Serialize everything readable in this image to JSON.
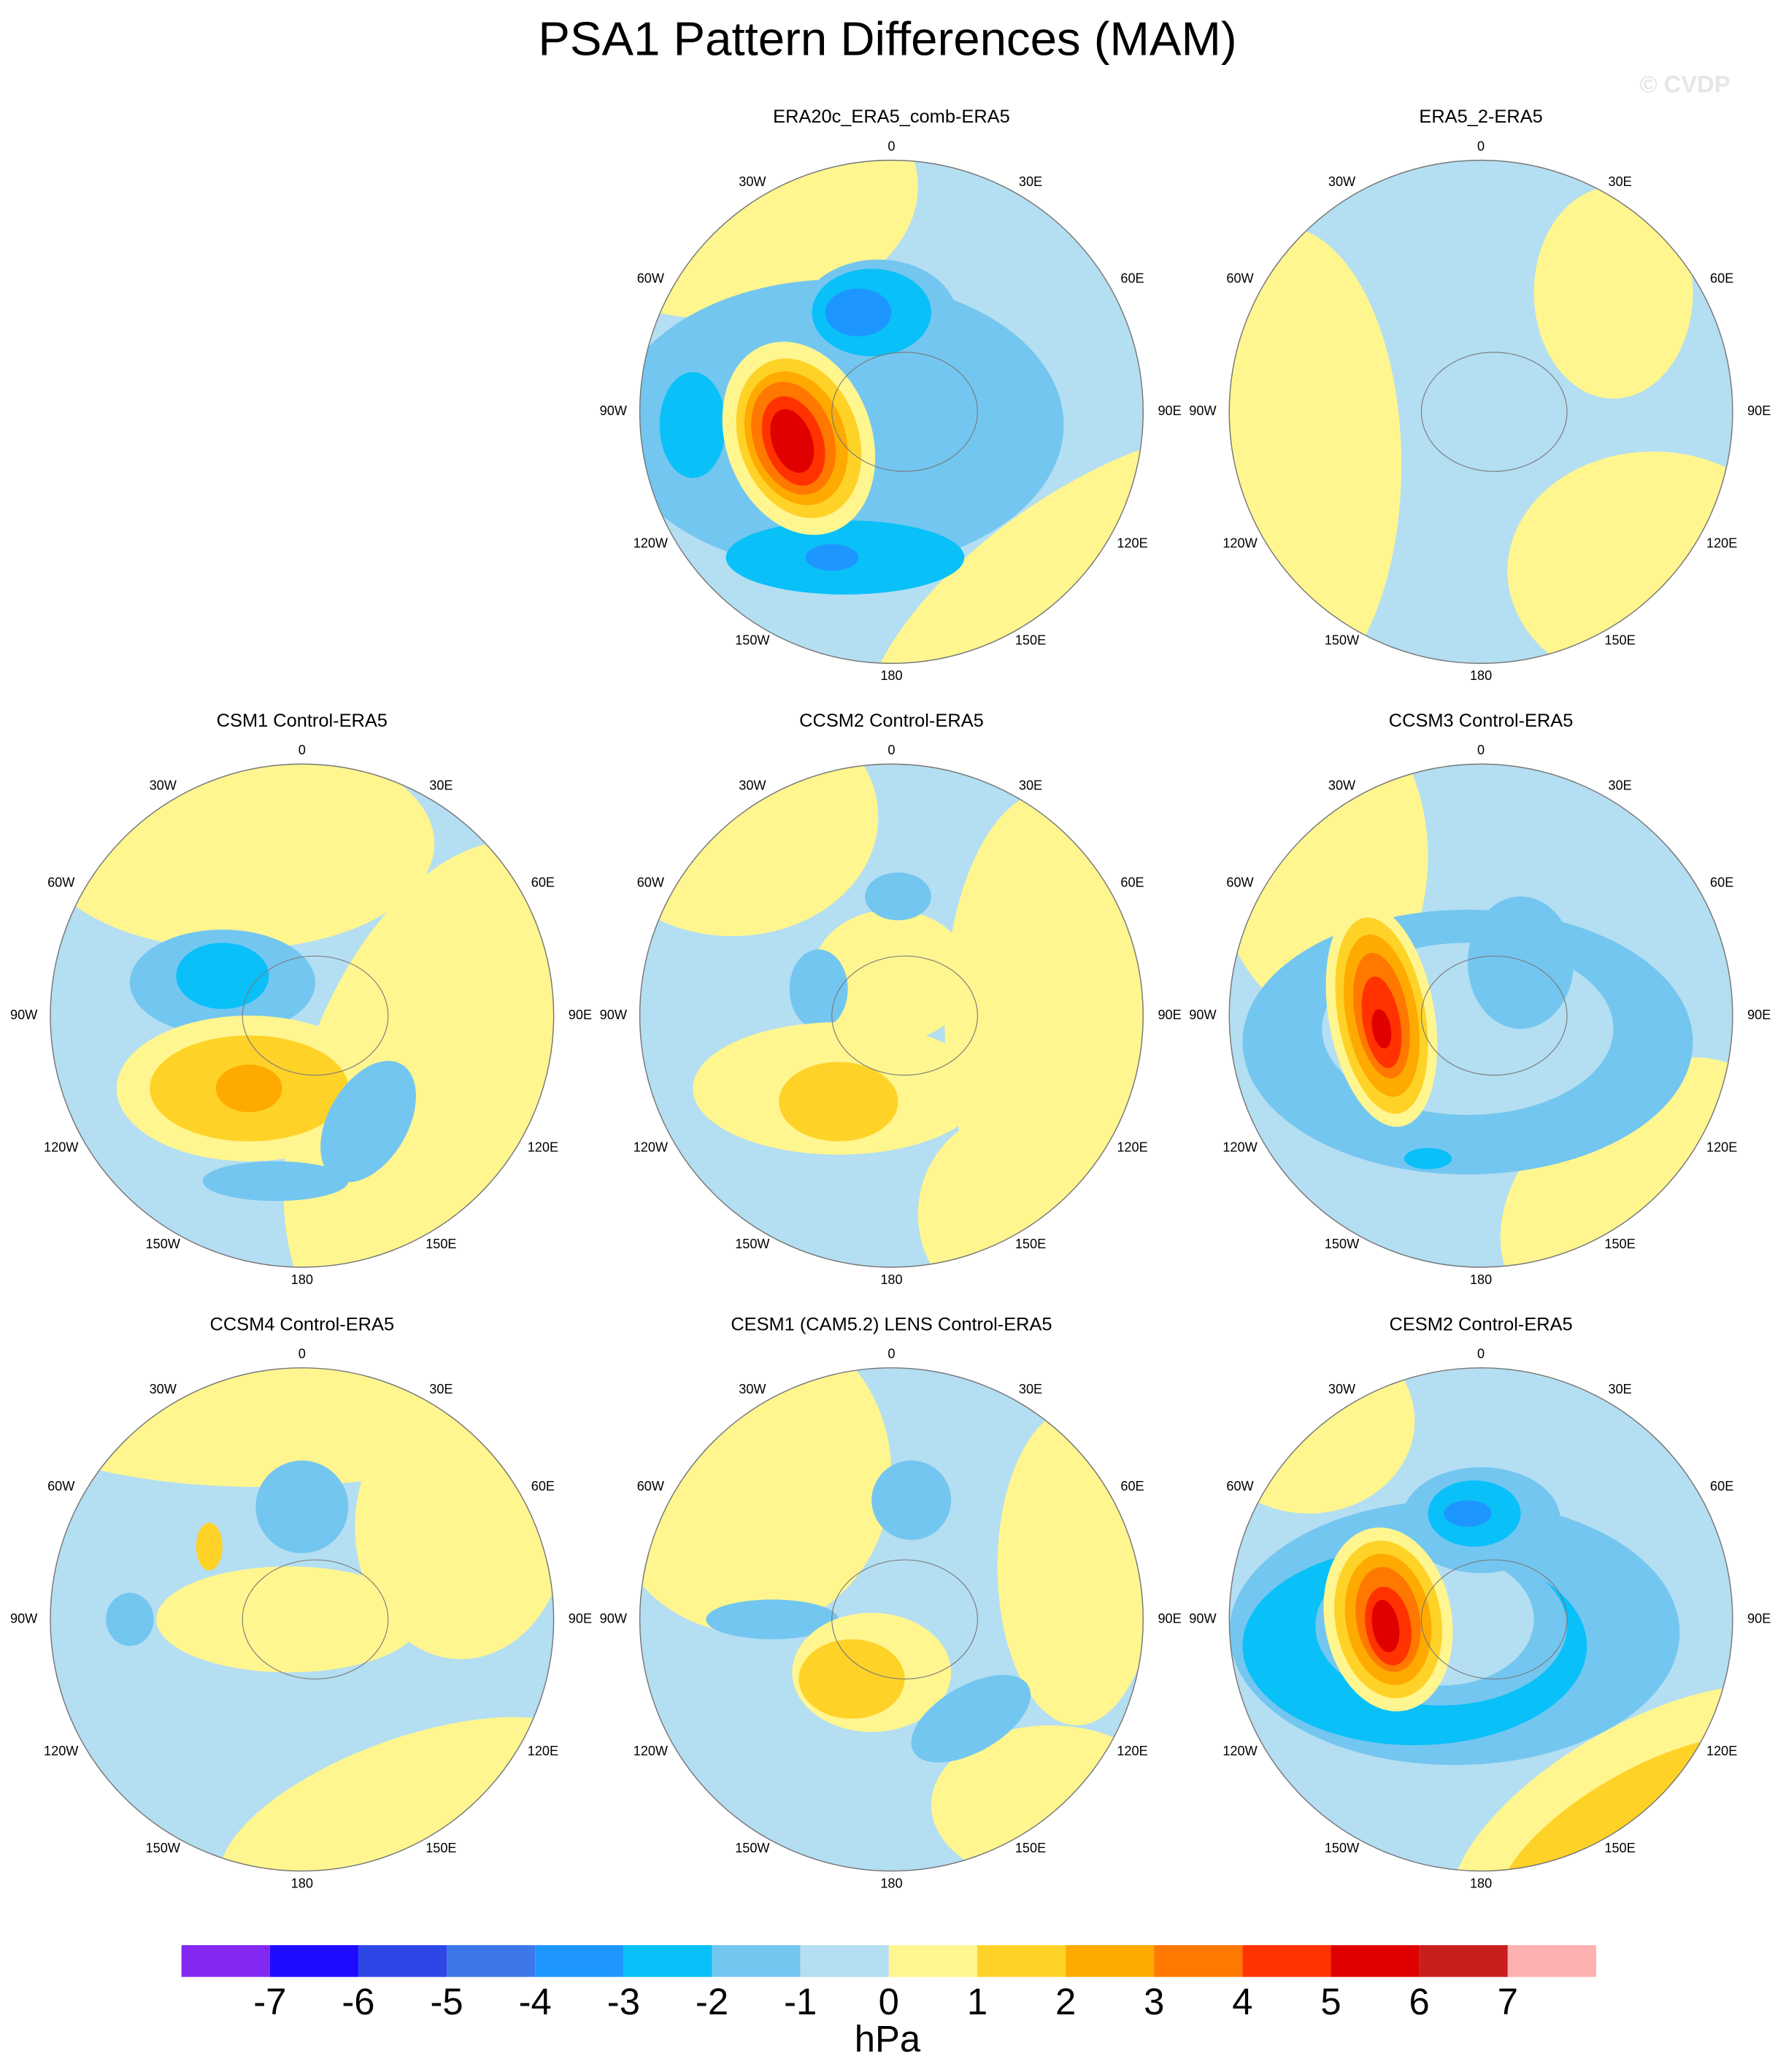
{
  "title": "PSA1 Pattern Differences (MAM)",
  "watermark": "© CVDP",
  "longitude_labels": [
    "0",
    "30E",
    "60E",
    "90E",
    "120E",
    "150E",
    "180",
    "150W",
    "120W",
    "90W",
    "60W",
    "30W"
  ],
  "panels": [
    {
      "title": "ERA20c_ERA5_comb-ERA5"
    },
    {
      "title": "ERA5_2-ERA5"
    },
    {
      "title": "CSM1 Control-ERA5"
    },
    {
      "title": "CCSM2 Control-ERA5"
    },
    {
      "title": "CCSM3 Control-ERA5"
    },
    {
      "title": "CCSM4 Control-ERA5"
    },
    {
      "title": "CESM1 (CAM5.2) LENS Control-ERA5"
    },
    {
      "title": "CESM2 Control-ERA5"
    }
  ],
  "colorbar": {
    "levels": [
      -7,
      -6,
      -5,
      -4,
      -3,
      -2,
      -1,
      0,
      1,
      2,
      3,
      4,
      5,
      6,
      7
    ],
    "colors": [
      "#8228f0",
      "#1e0aff",
      "#2d46e6",
      "#3c78e8",
      "#1e96ff",
      "#0ac0f8",
      "#73c6f0",
      "#b4def2",
      "#fff690",
      "#ffd228",
      "#ffaa00",
      "#ff7800",
      "#ff3200",
      "#e10000",
      "#c81e1e",
      "#ffb0b0"
    ],
    "label": "hPa"
  }
}
